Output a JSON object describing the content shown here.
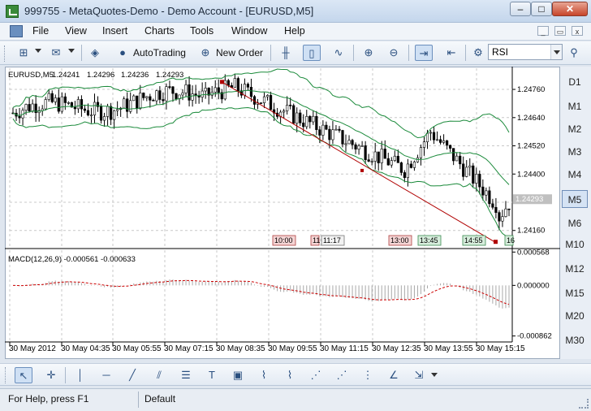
{
  "window": {
    "title": "999755 - MetaQuotes-Demo - Demo Account - [EURUSD,M5]",
    "minimize_glyph": "–",
    "maximize_glyph": "□",
    "close_glyph": "✕"
  },
  "menu": {
    "items": [
      "File",
      "View",
      "Insert",
      "Charts",
      "Tools",
      "Window",
      "Help"
    ],
    "mdi_minimize": "_",
    "mdi_restore": "▭",
    "mdi_close": "x"
  },
  "toolbar": {
    "autotrading_label": "AutoTrading",
    "new_order_label": "New Order",
    "indicator_value": "RSI"
  },
  "timeframes": [
    "D1",
    "M1",
    "M2",
    "M3",
    "M4",
    "M5",
    "M6",
    "M10",
    "M12",
    "M15",
    "M20",
    "M30"
  ],
  "active_timeframe": "M5",
  "status": {
    "help_text": "For Help, press F1",
    "profile": "Default"
  },
  "colors": {
    "bullish": "#000000",
    "bearish": "#000000",
    "bands": "#1a8a3a",
    "trendline": "#b00000",
    "macd_histogram": "#a8a8a8",
    "macd_signal": "#cc0000",
    "grid": "#c8c8c8"
  },
  "chart_data": [
    {
      "type": "candlestick",
      "symbol_label": "EURUSD,M5",
      "ohlc_header": [
        "1.24241",
        "1.24296",
        "1.24236",
        "1.24293"
      ],
      "indicator": "Bollinger Bands",
      "y_ticks": [
        "1.24760",
        "1.24640",
        "1.24520",
        "1.24400",
        "1.24160"
      ],
      "ylim": [
        1.2409,
        1.2485
      ],
      "current_price": "1.24293",
      "x_ticks": [
        "30 May 2012",
        "30 May 04:35",
        "30 May 05:55",
        "30 May 07:15",
        "30 May 08:35",
        "30 May 09:55",
        "30 May 11:15",
        "30 May 12:35",
        "30 May 13:55",
        "30 May 15:15"
      ],
      "event_markers": [
        {
          "time": "10:00",
          "style": "red"
        },
        {
          "time": "11",
          "style": "red"
        },
        {
          "time": "11:17",
          "style": "plain"
        },
        {
          "time": "13:00",
          "style": "red"
        },
        {
          "time": "13:45",
          "style": "green"
        },
        {
          "time": "14:55",
          "style": "green"
        },
        {
          "time": "16",
          "style": "green"
        }
      ],
      "trendline": {
        "start_price": 1.2479,
        "end_price": 1.2411
      }
    },
    {
      "type": "histogram",
      "title": "MACD(12,26,9) -0.000561 -0.000633",
      "y_ticks": [
        "0.000568",
        "0.000000",
        "-0.000862"
      ],
      "ylim": [
        -0.00095,
        0.0006
      ]
    }
  ]
}
